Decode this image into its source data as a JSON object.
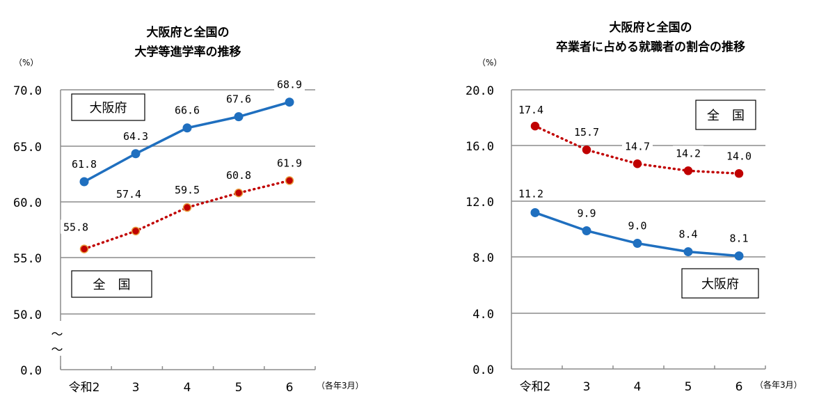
{
  "chart_data": [
    {
      "type": "line",
      "title": [
        "大阪府と全国の",
        "大学等進学率の推移"
      ],
      "ylabel": "（%）",
      "xlabel": "（各年3月）",
      "categories": [
        "令和2",
        "3",
        "4",
        "5",
        "6"
      ],
      "y_ticks": [
        "70.0",
        "65.0",
        "60.0",
        "55.0",
        "50.0",
        "0.0"
      ],
      "ylim": [
        50,
        70
      ],
      "axis_break": "〜",
      "series": [
        {
          "name": "大阪府",
          "values": [
            61.8,
            64.3,
            66.6,
            67.6,
            68.9
          ],
          "labels": [
            "61.8",
            "64.3",
            "66.6",
            "67.6",
            "68.9"
          ],
          "color": "#1F6FBF",
          "style": "solid"
        },
        {
          "name": "全　国",
          "values": [
            55.8,
            57.4,
            59.5,
            60.8,
            61.9
          ],
          "labels": [
            "55.8",
            "57.4",
            "59.5",
            "60.8",
            "61.9"
          ],
          "color": "#C00000",
          "style": "dotted"
        }
      ]
    },
    {
      "type": "line",
      "title": [
        "大阪府と全国の",
        "卒業者に占める就職者の割合の推移"
      ],
      "ylabel": "（%）",
      "xlabel": "（各年3月）",
      "categories": [
        "令和2",
        "3",
        "4",
        "5",
        "6"
      ],
      "y_ticks": [
        "20.0",
        "16.0",
        "12.0",
        "8.0",
        "4.0",
        "0.0"
      ],
      "ylim": [
        0,
        20
      ],
      "series": [
        {
          "name": "全　国",
          "values": [
            17.4,
            15.7,
            14.7,
            14.2,
            14.0
          ],
          "labels": [
            "17.4",
            "15.7",
            "14.7",
            "14.2",
            "14.0"
          ],
          "color": "#C00000",
          "style": "dotted"
        },
        {
          "name": "大阪府",
          "values": [
            11.2,
            9.9,
            9.0,
            8.4,
            8.1
          ],
          "labels": [
            "11.2",
            "9.9",
            "9.0",
            "8.4",
            "8.1"
          ],
          "color": "#1F6FBF",
          "style": "solid"
        }
      ]
    }
  ]
}
